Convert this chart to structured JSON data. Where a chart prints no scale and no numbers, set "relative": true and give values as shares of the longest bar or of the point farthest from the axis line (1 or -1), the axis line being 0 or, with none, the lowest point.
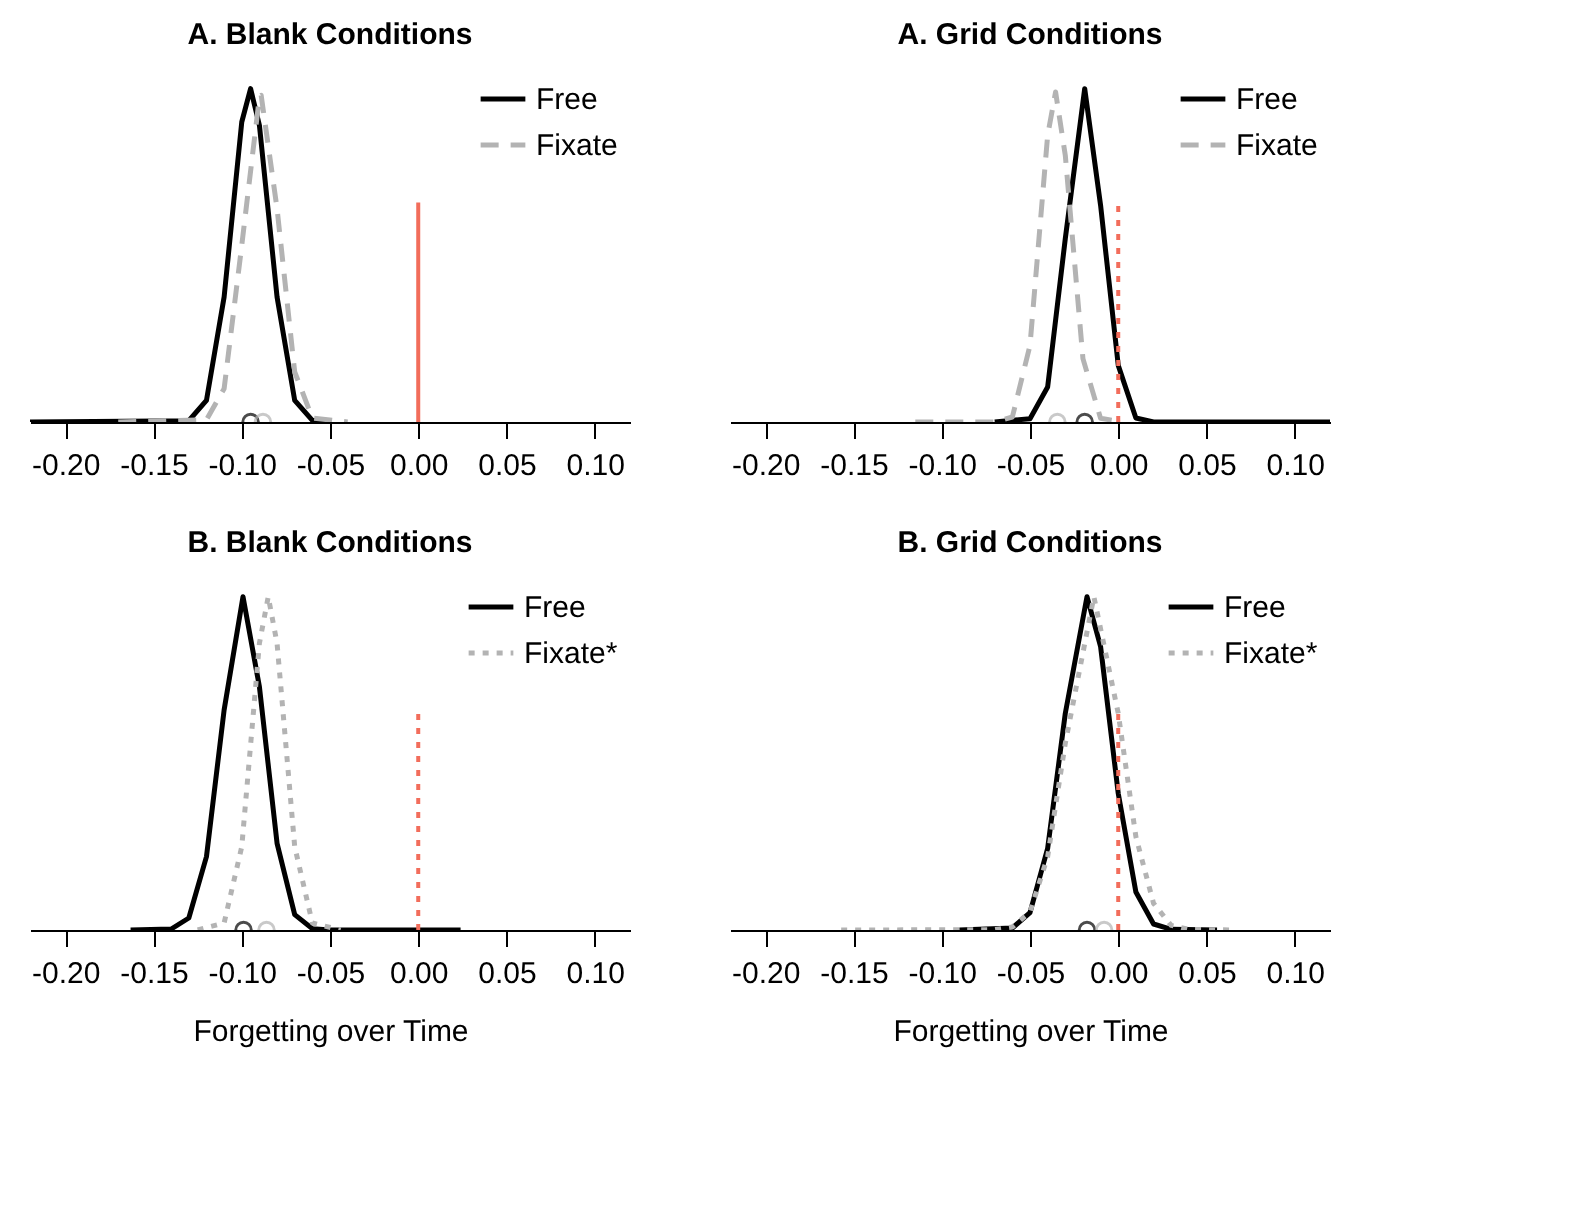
{
  "chart_data": [
    {
      "type": "line",
      "title": "A. Blank Conditions",
      "relative": true,
      "xlim": [
        -0.22,
        0.12
      ],
      "xticks": [
        {
          "value": -0.2,
          "label": "-0.20"
        },
        {
          "value": -0.15,
          "label": "-0.15"
        },
        {
          "value": -0.1,
          "label": "-0.10"
        },
        {
          "value": -0.05,
          "label": "-0.05"
        },
        {
          "value": 0,
          "label": "0.00"
        },
        {
          "value": 0.05,
          "label": "0.05"
        },
        {
          "value": 0.1,
          "label": "0.10"
        }
      ],
      "legend": "top right",
      "grid": false,
      "ref_lines": [
        {
          "axis": "x",
          "value": 0,
          "color": "#f26d5b",
          "line_style": "solid"
        }
      ],
      "series": [
        {
          "name": "Free",
          "color": "#000000",
          "line_style": "solid",
          "x": [
            -0.22,
            -0.13,
            -0.12,
            -0.11,
            -0.1,
            -0.095,
            -0.09,
            -0.08,
            -0.07,
            -0.06,
            -0.05
          ],
          "values": [
            0,
            0.004,
            0.065,
            0.375,
            0.9,
            1,
            0.89,
            0.375,
            0.065,
            0.005,
            0
          ]
        },
        {
          "name": "Fixate",
          "color": "#b3b3b3",
          "line_style": "dashed",
          "x": [
            -0.17,
            -0.12,
            -0.11,
            -0.1,
            -0.09,
            -0.089,
            -0.08,
            -0.07,
            -0.06,
            -0.04
          ],
          "values": [
            0,
            0.007,
            0.1,
            0.53,
            0.975,
            0.98,
            0.64,
            0.15,
            0.012,
            0
          ]
        },
        {
          "type": "scatter",
          "marker": "circle",
          "color": "#000000",
          "x": [
            -0.095
          ],
          "values": [
            0
          ]
        },
        {
          "type": "scatter",
          "marker": "circle",
          "color": "#b3b3b3",
          "x": [
            -0.088
          ],
          "values": [
            0
          ]
        }
      ]
    },
    {
      "type": "line",
      "title": "A. Grid Conditions",
      "relative": true,
      "xlim": [
        -0.22,
        0.12
      ],
      "xticks": [
        {
          "value": -0.2,
          "label": "-0.20"
        },
        {
          "value": -0.15,
          "label": "-0.15"
        },
        {
          "value": -0.1,
          "label": "-0.10"
        },
        {
          "value": -0.05,
          "label": "-0.05"
        },
        {
          "value": 0,
          "label": "0.00"
        },
        {
          "value": 0.05,
          "label": "0.05"
        },
        {
          "value": 0.1,
          "label": "0.10"
        }
      ],
      "legend": "top right",
      "grid": false,
      "ref_lines": [
        {
          "axis": "x",
          "value": 0,
          "color": "#f26d5b",
          "line_style": "dotted"
        }
      ],
      "series": [
        {
          "name": "Free",
          "color": "#000000",
          "line_style": "solid",
          "x": [
            -0.07,
            -0.05,
            -0.04,
            -0.03,
            -0.019,
            -0.01,
            0,
            0.01,
            0.02,
            0.12
          ],
          "values": [
            0,
            0.01,
            0.105,
            0.55,
            1,
            0.65,
            0.17,
            0.012,
            0,
            0
          ]
        },
        {
          "name": "Fixate",
          "color": "#b3b3b3",
          "line_style": "dashed",
          "x": [
            -0.115,
            -0.07,
            -0.06,
            -0.05,
            -0.04,
            -0.0355,
            -0.03,
            -0.02,
            -0.01,
            0.003
          ],
          "values": [
            0,
            0,
            0.015,
            0.23,
            0.86,
            0.99,
            0.8,
            0.19,
            0.011,
            0
          ]
        },
        {
          "type": "scatter",
          "marker": "circle",
          "color": "#000000",
          "x": [
            -0.019
          ],
          "values": [
            0
          ]
        },
        {
          "type": "scatter",
          "marker": "circle",
          "color": "#b3b3b3",
          "x": [
            -0.0345
          ],
          "values": [
            0
          ]
        }
      ]
    },
    {
      "type": "line",
      "title": "B. Blank Conditions",
      "xlabel": "Forgetting over Time",
      "relative": true,
      "xlim": [
        -0.22,
        0.12
      ],
      "xticks": [
        {
          "value": -0.2,
          "label": "-0.20"
        },
        {
          "value": -0.15,
          "label": "-0.15"
        },
        {
          "value": -0.1,
          "label": "-0.10"
        },
        {
          "value": -0.05,
          "label": "-0.05"
        },
        {
          "value": 0,
          "label": "0.00"
        },
        {
          "value": 0.05,
          "label": "0.05"
        },
        {
          "value": 0.1,
          "label": "0.10"
        }
      ],
      "legend": "top right",
      "grid": false,
      "ref_lines": [
        {
          "axis": "x",
          "value": 0,
          "color": "#f26d5b",
          "line_style": "dotted"
        }
      ],
      "series": [
        {
          "name": "Free",
          "color": "#000000",
          "line_style": "solid",
          "x": [
            -0.163,
            -0.14,
            -0.13,
            -0.12,
            -0.11,
            -0.0993,
            -0.09,
            -0.08,
            -0.07,
            -0.06,
            -0.05,
            0.024
          ],
          "values": [
            0,
            0.003,
            0.036,
            0.22,
            0.66,
            1,
            0.73,
            0.26,
            0.046,
            0.004,
            0,
            0
          ]
        },
        {
          "name": "Fixate*",
          "color": "#b3b3b3",
          "line_style": "dotted",
          "x": [
            -0.125,
            -0.11,
            -0.1,
            -0.09,
            -0.085,
            -0.08,
            -0.07,
            -0.06,
            -0.044
          ],
          "values": [
            0,
            0.021,
            0.25,
            0.86,
            1,
            0.86,
            0.25,
            0.021,
            0
          ]
        },
        {
          "type": "scatter",
          "marker": "circle",
          "color": "#000000",
          "x": [
            -0.099
          ],
          "values": [
            0
          ]
        },
        {
          "type": "scatter",
          "marker": "circle",
          "color": "#b3b3b3",
          "x": [
            -0.086
          ],
          "values": [
            0
          ]
        }
      ]
    },
    {
      "type": "line",
      "title": "B. Grid Conditions",
      "xlabel": "Forgetting over Time",
      "relative": true,
      "xlim": [
        -0.22,
        0.12
      ],
      "xticks": [
        {
          "value": -0.2,
          "label": "-0.20"
        },
        {
          "value": -0.15,
          "label": "-0.15"
        },
        {
          "value": -0.1,
          "label": "-0.10"
        },
        {
          "value": -0.05,
          "label": "-0.05"
        },
        {
          "value": 0,
          "label": "0.00"
        },
        {
          "value": 0.05,
          "label": "0.05"
        },
        {
          "value": 0.1,
          "label": "0.10"
        }
      ],
      "legend": "top right",
      "grid": false,
      "ref_lines": [
        {
          "axis": "x",
          "value": 0,
          "color": "#f26d5b",
          "line_style": "dotted"
        }
      ],
      "series": [
        {
          "name": "Free",
          "color": "#000000",
          "line_style": "solid",
          "x": [
            -0.09,
            -0.06,
            -0.05,
            -0.04,
            -0.03,
            -0.0177,
            -0.01,
            0,
            0.01,
            0.02,
            0.03,
            0.056
          ],
          "values": [
            0,
            0.006,
            0.052,
            0.245,
            0.65,
            1,
            0.85,
            0.41,
            0.114,
            0.018,
            0.002,
            0
          ]
        },
        {
          "name": "Fixate*",
          "color": "#b3b3b3",
          "line_style": "dotted",
          "x": [
            -0.157,
            -0.07,
            -0.06,
            -0.05,
            -0.04,
            -0.03,
            -0.0138,
            0,
            0.01,
            0.02,
            0.03,
            0.04,
            0.065
          ],
          "values": [
            0,
            0.001,
            0.009,
            0.054,
            0.22,
            0.56,
            1,
            0.65,
            0.28,
            0.08,
            0.014,
            0.002,
            0
          ]
        },
        {
          "type": "scatter",
          "marker": "circle",
          "color": "#000000",
          "x": [
            -0.0177
          ],
          "values": [
            0
          ]
        },
        {
          "type": "scatter",
          "marker": "circle",
          "color": "#b3b3b3",
          "x": [
            -0.008
          ],
          "values": [
            0
          ]
        }
      ]
    }
  ]
}
